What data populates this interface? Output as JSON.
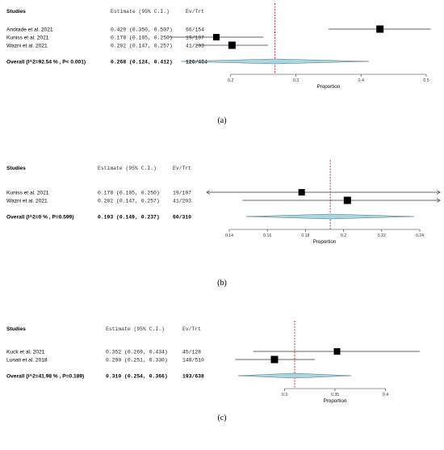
{
  "chart_data": [
    {
      "type": "forest",
      "panel_label": "(a)",
      "columns": {
        "study": "Studies",
        "estimate": "Estimate (95% C.I.)",
        "events": "Ev/Trt"
      },
      "studies": [
        {
          "name": "Andrade et al. 2021",
          "estimate": 0.429,
          "lower": 0.35,
          "upper": 0.507,
          "ci_text": "0.429 (0.350, 0.507)",
          "ev_trt": "66/154"
        },
        {
          "name": "Kuniss et al. 2021",
          "estimate": 0.178,
          "lower": 0.105,
          "upper": 0.25,
          "ci_text": "0.178 (0.105, 0.250)",
          "ev_trt": "19/107"
        },
        {
          "name": "Wazni et al. 2021",
          "estimate": 0.202,
          "lower": 0.147,
          "upper": 0.257,
          "ci_text": "0.202 (0.147, 0.257)",
          "ev_trt": "41/203"
        }
      ],
      "overall": {
        "label": "Overall (I^2=92.54 % , P< 0.001)",
        "estimate": 0.268,
        "lower": 0.124,
        "upper": 0.412,
        "ci_text": "0.268 (0.124, 0.412)",
        "ev_trt": "126/464"
      },
      "xlabel": "Proportion",
      "xlim": [
        0.1,
        0.5
      ],
      "xticks": [
        0.2,
        0.3,
        0.4,
        0.5
      ],
      "xtick_labels": [
        "0.2",
        "0.3",
        "0.4",
        "0.5"
      ],
      "reference_line": 0.268,
      "colors": {
        "diamond": "#a9d6e5",
        "reference": "#b5000f",
        "square": "#000000"
      }
    },
    {
      "type": "forest",
      "panel_label": "(b)",
      "columns": {
        "study": "Studies",
        "estimate": "Estimate (95% C.I.)",
        "events": "Ev/Trt"
      },
      "studies": [
        {
          "name": "Kuniss et al. 2021",
          "estimate": 0.178,
          "lower": 0.105,
          "upper": 0.25,
          "ci_text": "0.178 (0.105, 0.250)",
          "ev_trt": "19/107",
          "arrows": "both"
        },
        {
          "name": "Wazni et al. 2021",
          "estimate": 0.202,
          "lower": 0.147,
          "upper": 0.257,
          "ci_text": "0.202 (0.147, 0.257)",
          "ev_trt": "41/203",
          "arrows": "right"
        }
      ],
      "overall": {
        "label": "Overall (I^2=0 % , P=0.599)",
        "estimate": 0.193,
        "lower": 0.149,
        "upper": 0.237,
        "ci_text": "0.193 (0.149, 0.237)",
        "ev_trt": "60/310"
      },
      "xlabel": "Proportion",
      "xlim": [
        0.14,
        0.24
      ],
      "xticks": [
        0.14,
        0.16,
        0.18,
        0.2,
        0.22,
        0.24
      ],
      "xtick_labels": [
        "0.14",
        "0.16",
        "0.18",
        "0.2",
        "0.22",
        "0.24"
      ],
      "reference_line": 0.193,
      "colors": {
        "diamond": "#a9d6e5",
        "reference": "#b5000f",
        "square": "#000000"
      }
    },
    {
      "type": "forest",
      "panel_label": "(c)",
      "columns": {
        "study": "Studies",
        "estimate": "Estimate (95% C.I.)",
        "events": "Ev/Trt"
      },
      "studies": [
        {
          "name": "Kuck et al. 2021",
          "estimate": 0.352,
          "lower": 0.269,
          "upper": 0.434,
          "ci_text": "0.352 (0.269, 0.434)",
          "ev_trt": "45/128"
        },
        {
          "name": "Lunati et al. 2018",
          "estimate": 0.29,
          "lower": 0.251,
          "upper": 0.33,
          "ci_text": "0.290 (0.251, 0.330)",
          "ev_trt": "148/510"
        }
      ],
      "overall": {
        "label": "Overall (I^2=41.98 % , P=0.189)",
        "estimate": 0.31,
        "lower": 0.254,
        "upper": 0.366,
        "ci_text": "0.310 (0.254, 0.366)",
        "ev_trt": "193/638"
      },
      "xlabel": "Proportion",
      "xlim": [
        0.25,
        0.45
      ],
      "xticks": [
        0.3,
        0.35,
        0.4
      ],
      "xtick_labels": [
        "0.3",
        "0.35",
        "0.4"
      ],
      "reference_line": 0.31,
      "colors": {
        "diamond": "#a9d6e5",
        "reference": "#b5000f",
        "square": "#000000"
      }
    }
  ]
}
